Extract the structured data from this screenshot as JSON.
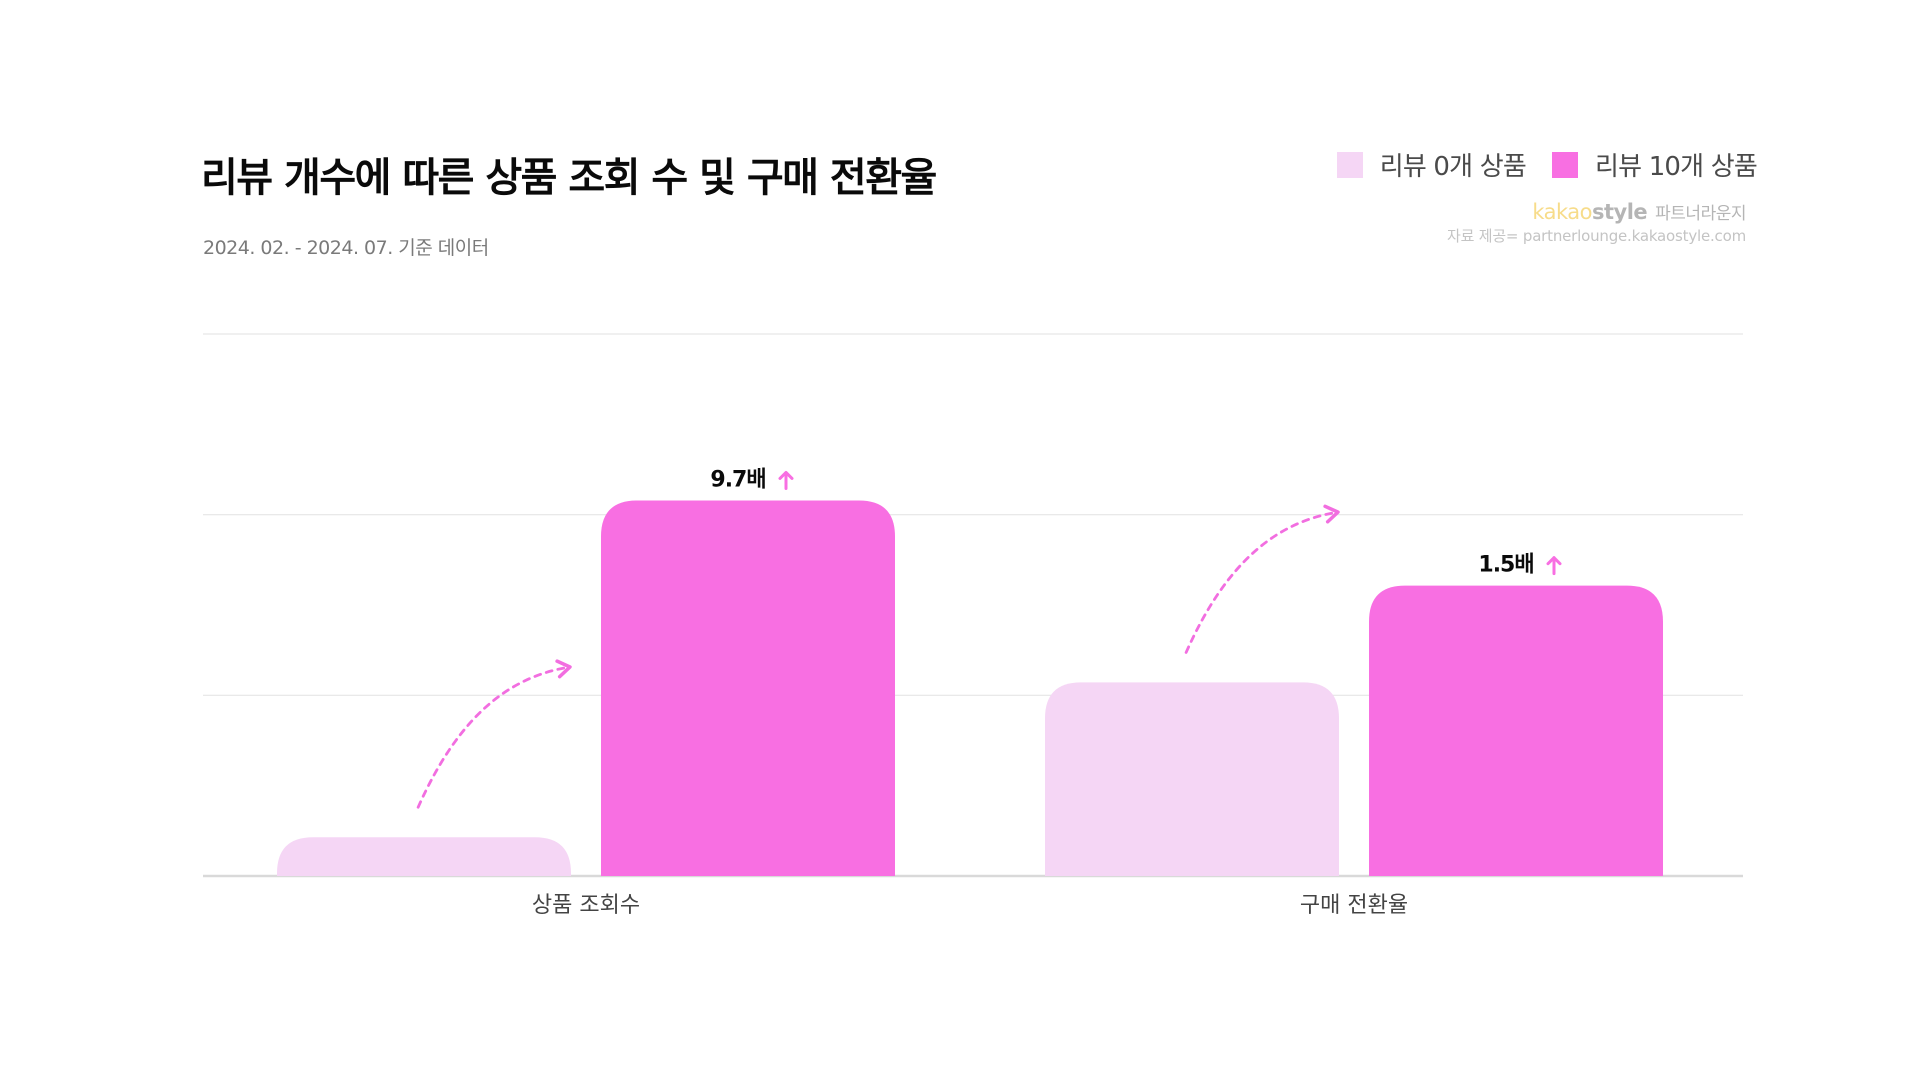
{
  "title": "리뷰 개수에 따른 상품 조회 수 및 구매 전환율",
  "subtitle": "2024. 02. - 2024. 07. 기준 데이터",
  "legend": {
    "items": [
      {
        "label": "리뷰 0개 상품",
        "color": "#f5d6f5"
      },
      {
        "label": "리뷰 10개 상품",
        "color": "#f86fe2"
      }
    ]
  },
  "brand": {
    "kakao": "kakao",
    "style": "style",
    "lounge": "파트너라운지",
    "source": "자료 제공= partnerlounge.kakaostyle.com"
  },
  "colors": {
    "accent": "#f86fe2",
    "light": "#f5d6f5",
    "arrow": "#f26ee0",
    "grid": "#e6e6e6",
    "baseline": "#d9d9d9"
  },
  "chart_data": {
    "type": "bar",
    "categories": [
      "상품 조회수",
      "구매 전환율"
    ],
    "series": [
      {
        "name": "리뷰 0개 상품",
        "values": [
          0.2,
          1.0
        ]
      },
      {
        "name": "리뷰 10개 상품",
        "values": [
          1.94,
          1.5
        ]
      }
    ],
    "annotations": [
      "9.7배",
      "1.5배"
    ],
    "ylim": [
      0,
      2.8
    ],
    "grid": true,
    "legend_position": "top-right",
    "xlabel": "",
    "ylabel": ""
  }
}
